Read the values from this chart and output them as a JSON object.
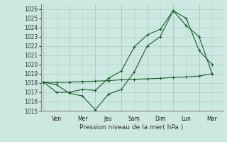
{
  "xlabel": "Pression niveau de la mer( hPa )",
  "ylim": [
    1015,
    1026.5
  ],
  "yticks": [
    1015,
    1016,
    1017,
    1018,
    1019,
    1020,
    1021,
    1022,
    1023,
    1024,
    1025,
    1026
  ],
  "x_day_labels": [
    "Ven",
    "Mer",
    "Jeu",
    "Sam",
    "Dim",
    "Lun",
    "Mar"
  ],
  "x_day_positions": [
    0,
    2,
    4,
    6,
    8,
    10,
    12
  ],
  "xlim": [
    -0.2,
    13.8
  ],
  "bg_color": "#cce8e0",
  "grid_color_major": "#aacfc8",
  "grid_color_minor": "#bdd8d2",
  "line_color": "#1a5c2a",
  "line1": {
    "x": [
      0,
      1,
      2,
      3,
      4,
      5,
      6,
      7,
      8,
      9,
      10,
      11,
      12,
      13
    ],
    "y": [
      1018.1,
      1017.8,
      1016.9,
      1016.6,
      1015.1,
      1016.8,
      1017.3,
      1019.2,
      1022.0,
      1023.0,
      1025.8,
      1025.0,
      1021.5,
      1020.0
    ]
  },
  "line2": {
    "x": [
      0,
      1,
      2,
      3,
      4,
      5,
      6,
      7,
      8,
      9,
      10,
      11,
      12,
      13
    ],
    "y": [
      1018.1,
      1017.0,
      1017.0,
      1017.3,
      1017.2,
      1018.5,
      1019.3,
      1021.9,
      1023.2,
      1023.8,
      1025.8,
      1024.2,
      1023.0,
      1019.0
    ]
  },
  "line3": {
    "x": [
      0,
      1,
      2,
      3,
      4,
      5,
      6,
      7,
      8,
      9,
      10,
      11,
      12,
      13
    ],
    "y": [
      1018.1,
      1018.05,
      1018.1,
      1018.15,
      1018.2,
      1018.25,
      1018.35,
      1018.4,
      1018.45,
      1018.5,
      1018.6,
      1018.65,
      1018.75,
      1019.0
    ]
  }
}
